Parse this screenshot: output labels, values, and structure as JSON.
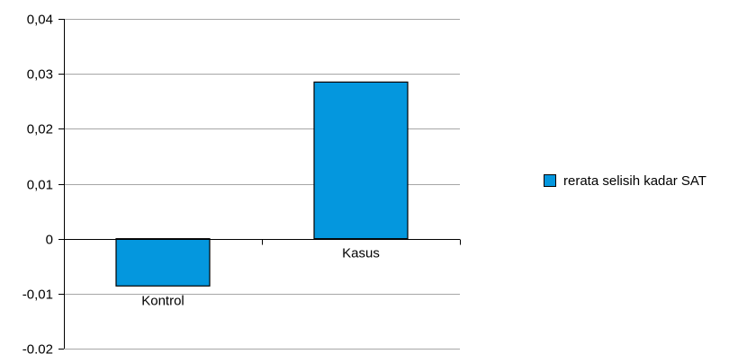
{
  "colors": {
    "bar": "#0497de",
    "grid": "#a6a6a6",
    "axis": "#000000"
  },
  "chart_data": {
    "type": "bar",
    "title": "",
    "xlabel": "",
    "ylabel": "",
    "categories": [
      "Kontrol",
      "Kasus"
    ],
    "series": [
      {
        "name": "rerata selisih kadar SAT",
        "values": [
          -0.0086,
          0.0285
        ]
      }
    ],
    "ylim": [
      -0.02,
      0.04
    ],
    "yticks": [
      -0.02,
      -0.01,
      0,
      0.01,
      0.02,
      0.03,
      0.04
    ],
    "ytick_labels": [
      "-0.02",
      "-0,01",
      "0",
      "0,01",
      "0,02",
      "0,03",
      "0,04"
    ],
    "grid": true,
    "legend": "right"
  }
}
